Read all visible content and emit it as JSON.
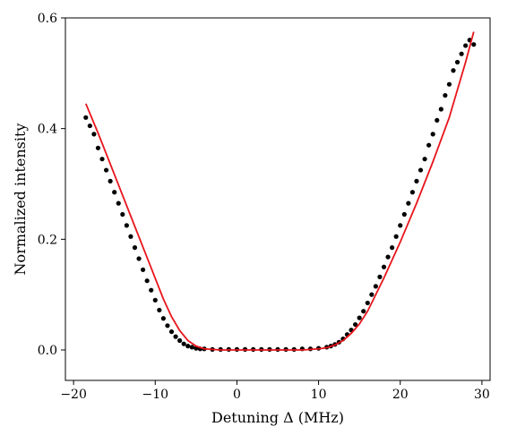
{
  "chart_data": {
    "type": "scatter",
    "title": "",
    "xlabel": "Detuning Δ (MHz)",
    "ylabel": "Normalized intensity",
    "xlim": [
      -21,
      31
    ],
    "ylim": [
      -0.055,
      0.6
    ],
    "xticks": [
      -20,
      -10,
      0,
      10,
      20,
      30
    ],
    "xtick_labels": [
      "−20",
      "−10",
      "0",
      "10",
      "20",
      "30"
    ],
    "yticks": [
      0.0,
      0.2,
      0.4,
      0.6
    ],
    "ytick_labels": [
      "0.0",
      "0.2",
      "0.4",
      "0.6"
    ],
    "grid": false,
    "legend": "none",
    "series": [
      {
        "kind": "scatter",
        "color": "#000000",
        "x": [
          -18.5,
          -18.0,
          -17.5,
          -17.0,
          -16.5,
          -16.0,
          -15.5,
          -15.0,
          -14.5,
          -14.0,
          -13.5,
          -13.0,
          -12.5,
          -12.0,
          -11.5,
          -11.0,
          -10.5,
          -10.0,
          -9.5,
          -9.0,
          -8.5,
          -8.0,
          -7.5,
          -7.0,
          -6.5,
          -6.0,
          -5.5,
          -5.0,
          -4.5,
          -4.0,
          -3.0,
          -2.0,
          -1.0,
          0.0,
          1.0,
          2.0,
          3.0,
          4.0,
          5.0,
          6.0,
          7.0,
          8.0,
          9.0,
          10.0,
          11.0,
          11.5,
          12.0,
          12.5,
          13.0,
          13.5,
          14.0,
          14.5,
          15.0,
          15.5,
          16.0,
          16.5,
          17.0,
          17.5,
          18.0,
          18.5,
          19.0,
          19.5,
          20.0,
          20.5,
          21.0,
          21.5,
          22.0,
          22.5,
          23.0,
          23.5,
          24.0,
          24.5,
          25.0,
          25.5,
          26.0,
          26.5,
          27.0,
          27.5,
          28.0,
          28.5,
          29.0
        ],
        "y": [
          0.42,
          0.405,
          0.39,
          0.365,
          0.345,
          0.325,
          0.305,
          0.285,
          0.265,
          0.245,
          0.225,
          0.205,
          0.185,
          0.165,
          0.145,
          0.125,
          0.108,
          0.09,
          0.072,
          0.057,
          0.044,
          0.033,
          0.024,
          0.017,
          0.011,
          0.007,
          0.005,
          0.003,
          0.002,
          0.002,
          0.001,
          0.001,
          0.001,
          0.001,
          0.001,
          0.001,
          0.001,
          0.001,
          0.001,
          0.001,
          0.001,
          0.002,
          0.002,
          0.003,
          0.005,
          0.007,
          0.01,
          0.014,
          0.02,
          0.028,
          0.036,
          0.046,
          0.058,
          0.07,
          0.085,
          0.1,
          0.115,
          0.132,
          0.15,
          0.168,
          0.185,
          0.205,
          0.225,
          0.245,
          0.265,
          0.285,
          0.305,
          0.325,
          0.345,
          0.37,
          0.39,
          0.415,
          0.435,
          0.46,
          0.48,
          0.505,
          0.52,
          0.535,
          0.55,
          0.56,
          0.552
        ]
      },
      {
        "kind": "line",
        "color": "#e8151b",
        "x": [
          -18.5,
          -17.0,
          -15.0,
          -13.0,
          -11.0,
          -9.0,
          -8.0,
          -7.0,
          -6.0,
          -5.0,
          -4.0,
          -2.0,
          0.0,
          2.0,
          4.0,
          6.0,
          8.0,
          10.0,
          11.0,
          12.0,
          13.0,
          14.0,
          15.0,
          16.0,
          18.0,
          20.0,
          22.0,
          24.0,
          26.0,
          28.0,
          29.0
        ],
        "y": [
          0.445,
          0.392,
          0.317,
          0.242,
          0.167,
          0.092,
          0.06,
          0.035,
          0.017,
          0.007,
          0.002,
          0.0,
          0.0,
          0.0,
          0.0,
          0.0,
          0.0,
          0.002,
          0.004,
          0.009,
          0.017,
          0.03,
          0.047,
          0.07,
          0.13,
          0.195,
          0.265,
          0.34,
          0.42,
          0.52,
          0.575
        ]
      }
    ]
  }
}
